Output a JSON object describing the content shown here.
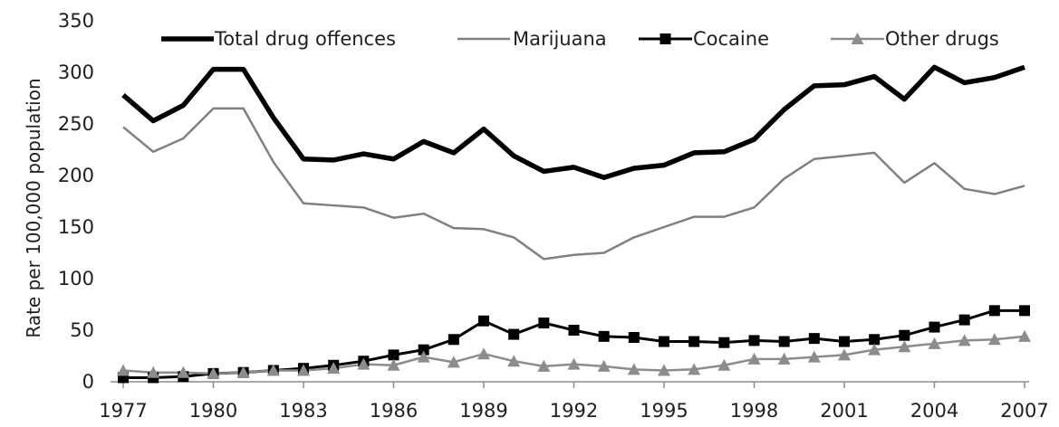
{
  "chart_data": {
    "type": "line",
    "title": "",
    "xlabel": "",
    "ylabel": "Rate per 100,000 population",
    "ylim": [
      0,
      350
    ],
    "yticks": [
      0,
      50,
      100,
      150,
      200,
      250,
      300,
      350
    ],
    "xlim": [
      1977,
      2007
    ],
    "xticks": [
      1977,
      1980,
      1983,
      1986,
      1989,
      1992,
      1995,
      1998,
      2001,
      2004,
      2007
    ],
    "x": [
      1977,
      1978,
      1979,
      1980,
      1981,
      1982,
      1983,
      1984,
      1985,
      1986,
      1987,
      1988,
      1989,
      1990,
      1991,
      1992,
      1993,
      1994,
      1995,
      1996,
      1997,
      1998,
      1999,
      2000,
      2001,
      2002,
      2003,
      2004,
      2005,
      2006,
      2007
    ],
    "grid": false,
    "legend_position": "top",
    "series": [
      {
        "name": "Total drug offences",
        "color": "#000000",
        "marker": "none",
        "values": [
          278,
          253,
          268,
          303,
          303,
          256,
          216,
          215,
          221,
          216,
          233,
          222,
          245,
          219,
          204,
          208,
          198,
          207,
          210,
          222,
          223,
          235,
          264,
          287,
          288,
          296,
          274,
          305,
          290,
          295,
          305
        ]
      },
      {
        "name": "Marijuana",
        "color": "#808080",
        "marker": "none",
        "values": [
          247,
          223,
          236,
          265,
          265,
          213,
          173,
          171,
          169,
          159,
          163,
          149,
          148,
          140,
          119,
          123,
          125,
          140,
          150,
          160,
          160,
          169,
          197,
          216,
          219,
          222,
          193,
          212,
          187,
          182,
          190
        ]
      },
      {
        "name": "Cocaine",
        "color": "#000000",
        "marker": "square",
        "values": [
          4,
          4,
          5,
          8,
          9,
          11,
          13,
          16,
          20,
          26,
          31,
          41,
          59,
          46,
          57,
          50,
          44,
          43,
          39,
          39,
          38,
          40,
          39,
          42,
          39,
          41,
          45,
          53,
          60,
          69,
          69
        ]
      },
      {
        "name": "Other drugs",
        "color": "#8c8c8c",
        "marker": "triangle",
        "values": [
          11,
          9,
          9,
          8,
          9,
          11,
          11,
          13,
          17,
          16,
          24,
          19,
          27,
          20,
          15,
          17,
          15,
          12,
          11,
          12,
          16,
          22,
          22,
          24,
          26,
          31,
          34,
          37,
          40,
          41,
          44
        ]
      }
    ]
  }
}
